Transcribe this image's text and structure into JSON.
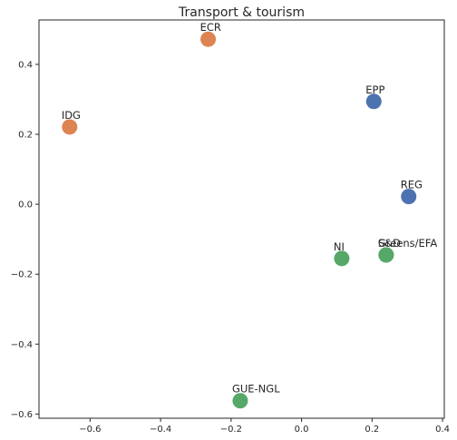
{
  "chart_data": {
    "type": "scatter",
    "title": "Transport & tourism",
    "xlabel": "",
    "ylabel": "",
    "xlim": [
      -0.745,
      0.405
    ],
    "ylim": [
      -0.612,
      0.527
    ],
    "xticks": [
      -0.6,
      -0.4,
      -0.2,
      0.0,
      0.2,
      0.4
    ],
    "xtick_labels": [
      "−0.6",
      "−0.4",
      "−0.2",
      "0.0",
      "0.2",
      "0.4"
    ],
    "yticks": [
      -0.6,
      -0.4,
      -0.2,
      0.0,
      0.2,
      0.4
    ],
    "ytick_labels": [
      "−0.6",
      "−0.4",
      "−0.2",
      "0.0",
      "0.2",
      "0.4"
    ],
    "grid": false,
    "colors": {
      "blue": "#4c72b0",
      "orange": "#dd8452",
      "green": "#55a868"
    },
    "points": [
      {
        "label": "ECR",
        "x": -0.265,
        "y": 0.472,
        "color": "orange"
      },
      {
        "label": "IDG",
        "x": -0.658,
        "y": 0.221,
        "color": "orange"
      },
      {
        "label": "EPP",
        "x": 0.205,
        "y": 0.294,
        "color": "blue"
      },
      {
        "label": "REG",
        "x": 0.304,
        "y": 0.022,
        "color": "blue"
      },
      {
        "label": "NI",
        "x": 0.114,
        "y": -0.155,
        "color": "green"
      },
      {
        "label": "S&D",
        "x": 0.24,
        "y": -0.145,
        "color": "green"
      },
      {
        "label": "Greens/EFA",
        "x": 0.24,
        "y": -0.145,
        "color": "green"
      },
      {
        "label": "GUE-NGL",
        "x": -0.174,
        "y": -0.562,
        "color": "green"
      }
    ]
  }
}
